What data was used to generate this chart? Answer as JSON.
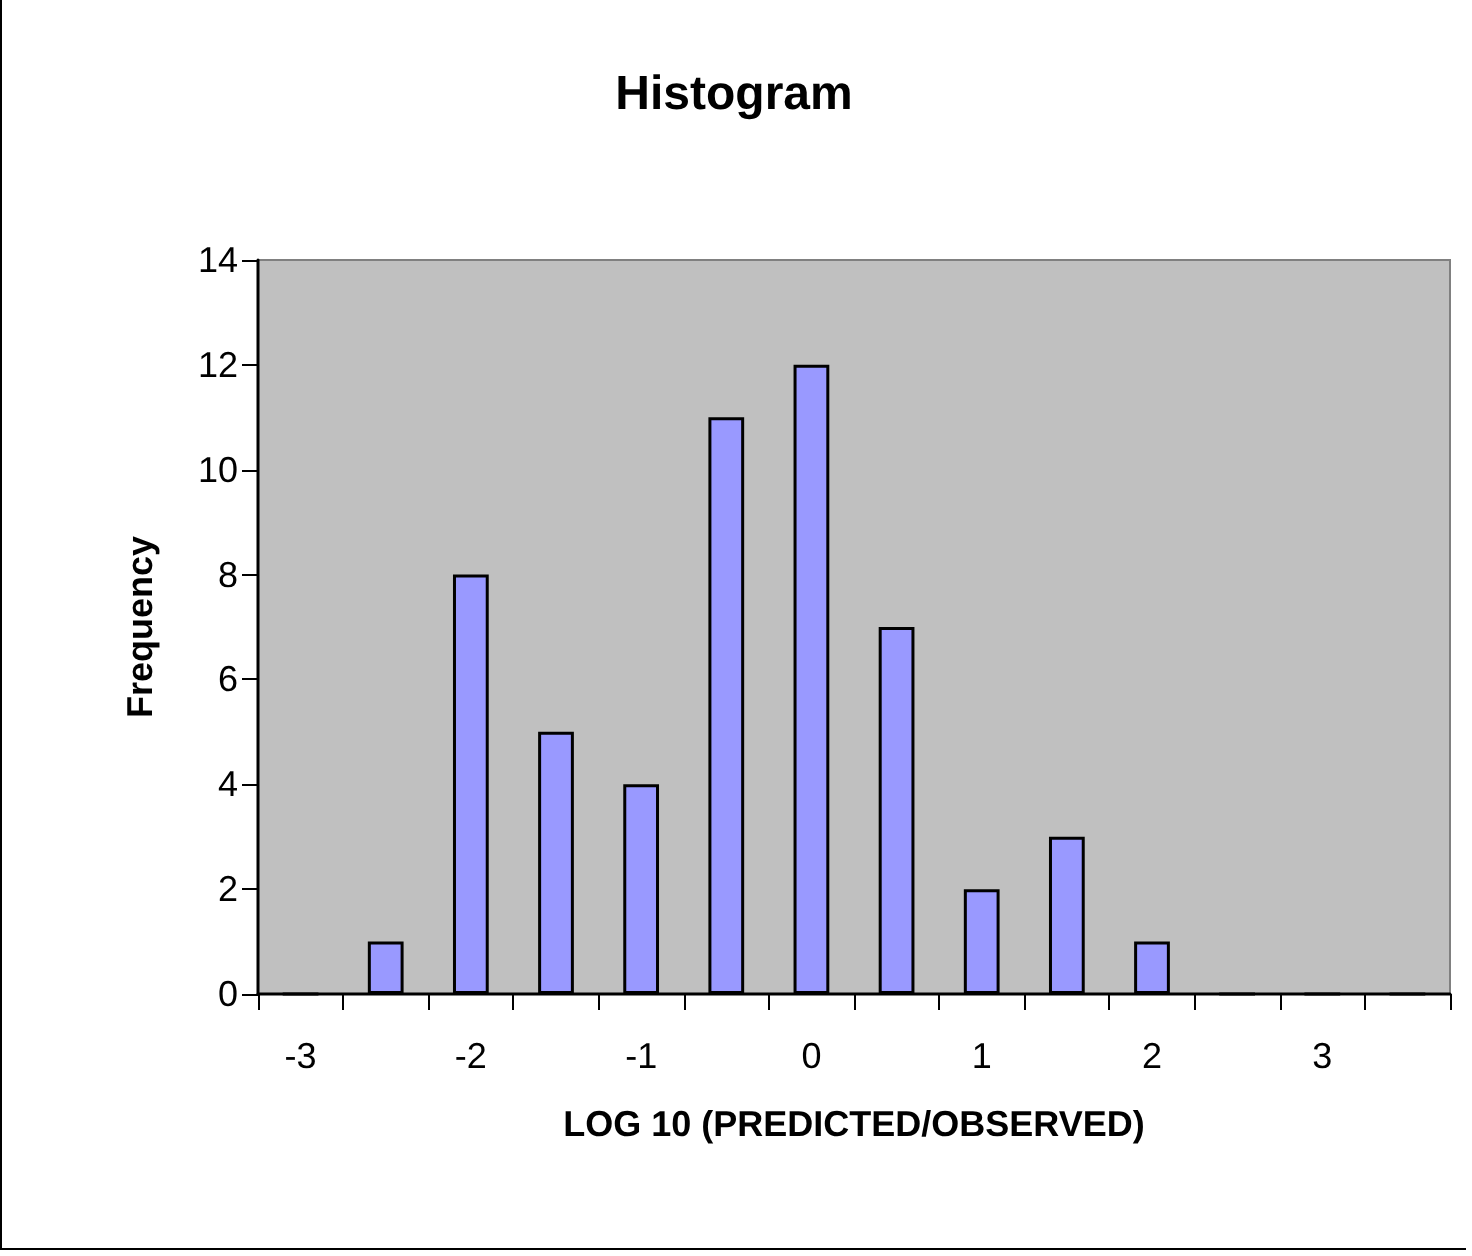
{
  "chart_data": {
    "type": "bar",
    "title": "Histogram",
    "xlabel": "LOG 10 (PREDICTED/OBSERVED)",
    "ylabel": "Frequency",
    "categories": [
      "-3",
      null,
      "-2",
      null,
      "-1",
      null,
      "0",
      null,
      "1",
      null,
      "2",
      null,
      "3",
      null
    ],
    "values": [
      0,
      1,
      8,
      5,
      4,
      11,
      12,
      7,
      2,
      3,
      1,
      0,
      0,
      0
    ],
    "color": "#9999ff",
    "ylim": [
      0,
      14
    ],
    "yticks": [
      0,
      2,
      4,
      6,
      8,
      10,
      12,
      14
    ],
    "grid": false
  }
}
